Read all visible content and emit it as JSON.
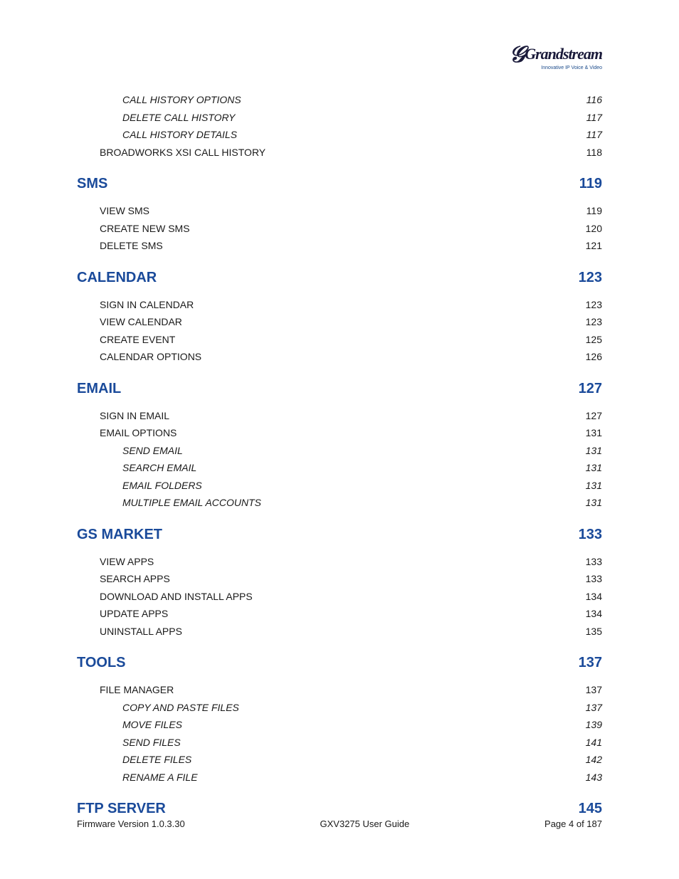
{
  "logo": {
    "brand": "Grandstream",
    "tagline": "Innovative IP Voice & Video"
  },
  "toc": [
    {
      "level": 2,
      "label": "CALL HISTORY OPTIONS",
      "page": "116"
    },
    {
      "level": 2,
      "label": "DELETE CALL HISTORY",
      "page": "117"
    },
    {
      "level": 2,
      "label": "CALL HISTORY DETAILS",
      "page": "117"
    },
    {
      "level": 1,
      "label": "BROADWORKS XSI CALL HISTORY",
      "page": "118"
    },
    {
      "level": 0,
      "label": "SMS",
      "page": "119"
    },
    {
      "level": 1,
      "label": "VIEW SMS",
      "page": "119"
    },
    {
      "level": 1,
      "label": "CREATE NEW SMS",
      "page": "120"
    },
    {
      "level": 1,
      "label": "DELETE SMS",
      "page": "121"
    },
    {
      "level": 0,
      "label": "CALENDAR",
      "page": "123"
    },
    {
      "level": 1,
      "label": "SIGN IN CALENDAR",
      "page": "123"
    },
    {
      "level": 1,
      "label": "VIEW CALENDAR",
      "page": "123"
    },
    {
      "level": 1,
      "label": "CREATE EVENT",
      "page": "125"
    },
    {
      "level": 1,
      "label": "CALENDAR OPTIONS",
      "page": "126"
    },
    {
      "level": 0,
      "label": "EMAIL",
      "page": "127"
    },
    {
      "level": 1,
      "label": "SIGN IN EMAIL",
      "page": "127"
    },
    {
      "level": 1,
      "label": "EMAIL OPTIONS",
      "page": "131"
    },
    {
      "level": 2,
      "label": "SEND EMAIL",
      "page": "131"
    },
    {
      "level": 2,
      "label": "SEARCH EMAIL",
      "page": "131"
    },
    {
      "level": 2,
      "label": "EMAIL FOLDERS",
      "page": "131"
    },
    {
      "level": 2,
      "label": "MULTIPLE EMAIL ACCOUNTS",
      "page": "131"
    },
    {
      "level": 0,
      "label": "GS MARKET",
      "page": "133"
    },
    {
      "level": 1,
      "label": "VIEW APPS",
      "page": "133"
    },
    {
      "level": 1,
      "label": "SEARCH APPS",
      "page": "133"
    },
    {
      "level": 1,
      "label": "DOWNLOAD AND INSTALL APPS",
      "page": "134"
    },
    {
      "level": 1,
      "label": "UPDATE APPS",
      "page": "134"
    },
    {
      "level": 1,
      "label": "UNINSTALL APPS",
      "page": "135"
    },
    {
      "level": 0,
      "label": "TOOLS",
      "page": "137"
    },
    {
      "level": 1,
      "label": "FILE MANAGER",
      "page": "137"
    },
    {
      "level": 2,
      "label": "COPY AND PASTE FILES",
      "page": "137"
    },
    {
      "level": 2,
      "label": "MOVE FILES",
      "page": "139"
    },
    {
      "level": 2,
      "label": "SEND FILES",
      "page": "141"
    },
    {
      "level": 2,
      "label": "DELETE FILES",
      "page": "142"
    },
    {
      "level": 2,
      "label": "RENAME A FILE",
      "page": "143"
    },
    {
      "level": 0,
      "label": "FTP SERVER",
      "page": "145"
    }
  ],
  "footer": {
    "left": "Firmware Version 1.0.3.30",
    "center": "GXV3275 User Guide",
    "right": "Page 4 of 187"
  },
  "colors": {
    "section_heading": "#1a4a9a",
    "body_text": "#1a1a1a",
    "logo_color": "#1a1a3a"
  }
}
